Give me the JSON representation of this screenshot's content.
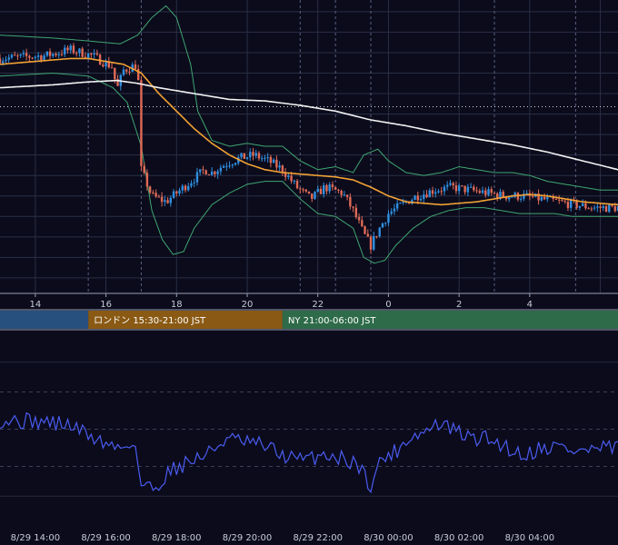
{
  "colors": {
    "background": "#0b0b1c",
    "grid": "#2a2f44",
    "candle_up": "#2f8fe0",
    "candle_down": "#e06a56",
    "sma_long": "#f2f2f2",
    "ma_mid": "#f3a233",
    "bollinger": "#3fa670",
    "rsi_line": "#4b5cf0",
    "session_tokyo": "#27507f",
    "session_london": "#8a5a14",
    "session_ny": "#2e6b49"
  },
  "sessions": [
    {
      "name": "tokyo",
      "label": "",
      "from": 13.0,
      "to": 15.5
    },
    {
      "name": "london",
      "label": "ロンドン 15:30-21:00 JST",
      "from": 15.5,
      "to": 21.0
    },
    {
      "name": "ny",
      "label": "NY 21:00-06:00 JST",
      "from": 21.0,
      "to": 30.5
    }
  ],
  "upper_axis_ticks": [
    "14",
    "16",
    "18",
    "20",
    "22",
    "0",
    "2",
    "4"
  ],
  "lower_axis_ticks": [
    "8/29 14:00",
    "8/29 16:00",
    "8/29 18:00",
    "8/29 20:00",
    "8/29 22:00",
    "8/30 00:00",
    "8/30 02:00",
    "8/30 04:00"
  ],
  "chart_data": [
    {
      "type": "candlestick",
      "x_unit": "hours JST from 8/29 00:00",
      "xlim": [
        13.0,
        30.5
      ],
      "ylim": [
        0,
        100
      ],
      "reference_level": 63.5,
      "session_dividers": [
        15.5,
        21.0,
        30.5
      ],
      "anchors_close": [
        [
          13.0,
          80
        ],
        [
          14.3,
          81
        ],
        [
          15.0,
          83
        ],
        [
          15.6,
          81
        ],
        [
          16.2,
          77
        ],
        [
          16.3,
          69
        ],
        [
          16.5,
          76
        ],
        [
          16.9,
          78
        ],
        [
          17.0,
          42
        ],
        [
          17.3,
          33
        ],
        [
          17.7,
          31
        ],
        [
          18.2,
          36
        ],
        [
          18.8,
          42
        ],
        [
          19.0,
          41
        ],
        [
          19.4,
          44
        ],
        [
          19.8,
          46
        ],
        [
          20.2,
          47
        ],
        [
          20.6,
          45
        ],
        [
          21.0,
          42
        ],
        [
          21.4,
          36
        ],
        [
          21.8,
          32
        ],
        [
          22.2,
          36
        ],
        [
          22.7,
          34
        ],
        [
          23.0,
          28
        ],
        [
          23.3,
          20
        ],
        [
          23.5,
          16
        ],
        [
          23.7,
          21
        ],
        [
          24.0,
          27
        ],
        [
          24.5,
          31
        ],
        [
          24.8,
          33
        ],
        [
          25.3,
          35
        ],
        [
          25.8,
          36
        ],
        [
          26.3,
          35
        ],
        [
          26.8,
          34
        ],
        [
          27.3,
          33
        ],
        [
          27.8,
          33
        ],
        [
          28.3,
          32
        ],
        [
          28.8,
          31
        ],
        [
          29.3,
          30
        ],
        [
          29.8,
          29
        ],
        [
          30.5,
          29
        ]
      ],
      "sma_long": [
        [
          13.0,
          70
        ],
        [
          14.5,
          71
        ],
        [
          15.5,
          72
        ],
        [
          16.3,
          72.5
        ],
        [
          16.9,
          71.5
        ],
        [
          17.5,
          70
        ],
        [
          18.5,
          68
        ],
        [
          19.5,
          66
        ],
        [
          20.5,
          65.5
        ],
        [
          21.5,
          64
        ],
        [
          22.5,
          62
        ],
        [
          23.5,
          59
        ],
        [
          24.5,
          57
        ],
        [
          25.5,
          54.5
        ],
        [
          26.5,
          52.5
        ],
        [
          27.5,
          50.5
        ],
        [
          28.5,
          48
        ],
        [
          29.5,
          45
        ],
        [
          30.5,
          42
        ]
      ],
      "ma_mid": [
        [
          13.0,
          78
        ],
        [
          14.0,
          79
        ],
        [
          15.0,
          80
        ],
        [
          15.5,
          80
        ],
        [
          16.0,
          79
        ],
        [
          16.5,
          78
        ],
        [
          17.0,
          75
        ],
        [
          17.5,
          68
        ],
        [
          18.0,
          62
        ],
        [
          18.5,
          56
        ],
        [
          19.0,
          51
        ],
        [
          19.5,
          47
        ],
        [
          20.0,
          44
        ],
        [
          20.5,
          42
        ],
        [
          21.0,
          41
        ],
        [
          21.5,
          40.5
        ],
        [
          22.0,
          40
        ],
        [
          22.5,
          39.5
        ],
        [
          23.0,
          38.5
        ],
        [
          23.5,
          36
        ],
        [
          24.0,
          33
        ],
        [
          24.5,
          31
        ],
        [
          25.0,
          30.5
        ],
        [
          25.5,
          30
        ],
        [
          26.0,
          30.5
        ],
        [
          26.5,
          31
        ],
        [
          27.0,
          32
        ],
        [
          27.5,
          33
        ],
        [
          28.0,
          33.5
        ],
        [
          28.5,
          33
        ],
        [
          29.0,
          32
        ],
        [
          29.5,
          31
        ],
        [
          30.0,
          30.5
        ],
        [
          30.5,
          30
        ]
      ],
      "bollinger_upper": [
        [
          13.0,
          88
        ],
        [
          14.5,
          87
        ],
        [
          15.5,
          86
        ],
        [
          16.4,
          85
        ],
        [
          16.9,
          88
        ],
        [
          17.3,
          94
        ],
        [
          17.7,
          98
        ],
        [
          18.0,
          94
        ],
        [
          18.4,
          78
        ],
        [
          18.6,
          62
        ],
        [
          19.0,
          52
        ],
        [
          19.5,
          50
        ],
        [
          20.0,
          51
        ],
        [
          20.5,
          50
        ],
        [
          21.0,
          50
        ],
        [
          21.5,
          45
        ],
        [
          22.0,
          42
        ],
        [
          22.5,
          43
        ],
        [
          23.0,
          41
        ],
        [
          23.3,
          47
        ],
        [
          23.7,
          49
        ],
        [
          24.0,
          45
        ],
        [
          24.5,
          41
        ],
        [
          25.0,
          40
        ],
        [
          25.5,
          41
        ],
        [
          26.0,
          43
        ],
        [
          26.5,
          42
        ],
        [
          27.0,
          41
        ],
        [
          27.5,
          41
        ],
        [
          28.0,
          40
        ],
        [
          28.5,
          38
        ],
        [
          29.0,
          37
        ],
        [
          29.5,
          36
        ],
        [
          30.0,
          35
        ],
        [
          30.5,
          35
        ]
      ],
      "bollinger_lower": [
        [
          13.0,
          74
        ],
        [
          14.5,
          75
        ],
        [
          15.5,
          74
        ],
        [
          16.2,
          70
        ],
        [
          16.6,
          65
        ],
        [
          17.0,
          50
        ],
        [
          17.3,
          28
        ],
        [
          17.6,
          18
        ],
        [
          17.9,
          13
        ],
        [
          18.2,
          14
        ],
        [
          18.5,
          22
        ],
        [
          19.0,
          30
        ],
        [
          19.5,
          34
        ],
        [
          20.0,
          37
        ],
        [
          20.5,
          38
        ],
        [
          21.0,
          38
        ],
        [
          21.5,
          32
        ],
        [
          22.0,
          27
        ],
        [
          22.5,
          26
        ],
        [
          23.0,
          22
        ],
        [
          23.3,
          12
        ],
        [
          23.6,
          10
        ],
        [
          23.9,
          11
        ],
        [
          24.2,
          16
        ],
        [
          24.7,
          22
        ],
        [
          25.2,
          26
        ],
        [
          25.7,
          28
        ],
        [
          26.2,
          29
        ],
        [
          26.7,
          29
        ],
        [
          27.2,
          28
        ],
        [
          27.7,
          27
        ],
        [
          28.2,
          27
        ],
        [
          28.7,
          27
        ],
        [
          29.2,
          26
        ],
        [
          29.7,
          26
        ],
        [
          30.5,
          26
        ]
      ]
    },
    {
      "type": "line",
      "x_unit": "hours JST from 8/29 00:00",
      "xlim": [
        13.0,
        30.5
      ],
      "ylim": [
        0,
        100
      ],
      "reference_levels": [
        70,
        50,
        30
      ],
      "anchors": [
        [
          13.0,
          55
        ],
        [
          14.3,
          54
        ],
        [
          15.0,
          52
        ],
        [
          15.6,
          46
        ],
        [
          16.0,
          42
        ],
        [
          16.4,
          40
        ],
        [
          16.8,
          44
        ],
        [
          17.0,
          20
        ],
        [
          17.4,
          18
        ],
        [
          17.8,
          28
        ],
        [
          18.4,
          33
        ],
        [
          18.9,
          37
        ],
        [
          19.4,
          45
        ],
        [
          19.9,
          43
        ],
        [
          20.5,
          41
        ],
        [
          21.0,
          36
        ],
        [
          21.6,
          33
        ],
        [
          22.2,
          37
        ],
        [
          22.7,
          34
        ],
        [
          23.1,
          32
        ],
        [
          23.5,
          20
        ],
        [
          23.8,
          34
        ],
        [
          24.2,
          38
        ],
        [
          24.6,
          46
        ],
        [
          25.0,
          48
        ],
        [
          25.4,
          53
        ],
        [
          25.9,
          49
        ],
        [
          26.3,
          45
        ],
        [
          26.8,
          45
        ],
        [
          27.3,
          41
        ],
        [
          27.8,
          36
        ],
        [
          28.3,
          40
        ],
        [
          28.8,
          41
        ],
        [
          29.3,
          38
        ],
        [
          29.8,
          39
        ],
        [
          30.5,
          40
        ]
      ],
      "series": [
        {
          "values_hint": "RSI-style oscillator, 0–100"
        }
      ]
    }
  ]
}
